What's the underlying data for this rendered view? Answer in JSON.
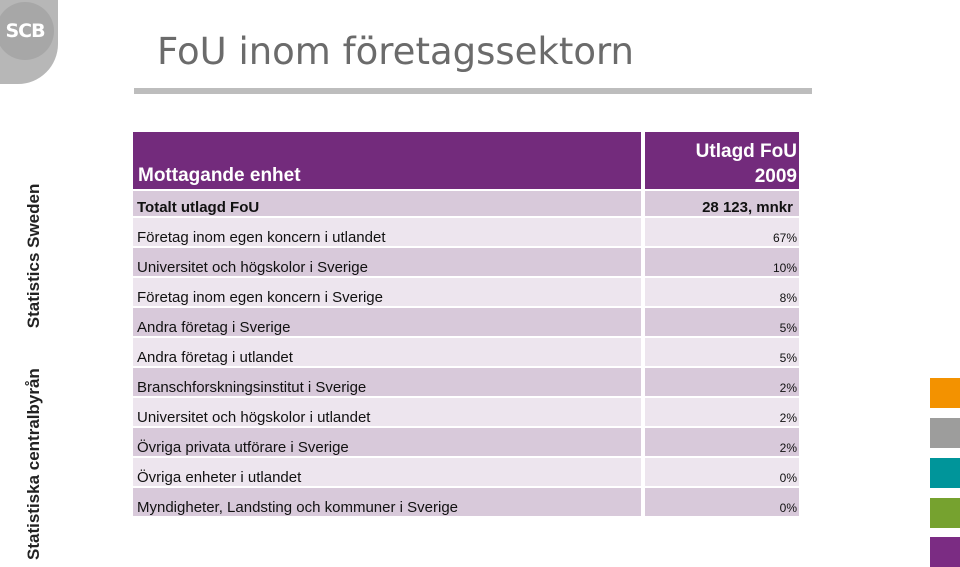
{
  "logo": {
    "text": "SCB"
  },
  "page": {
    "title": "FoU inom företagssektorn"
  },
  "side": {
    "org_sv": "Statistiska centralbyrån",
    "org_en": "Statistics Sweden"
  },
  "table": {
    "header_left": "Mottagande enhet",
    "header_right_line1": "Utlagd FoU",
    "header_right_line2": "2009",
    "total_label": "Totalt utlagd FoU",
    "total_value": "28 123, mnkr",
    "rows": [
      {
        "label": "Företag inom egen koncern i utlandet",
        "value": "67%"
      },
      {
        "label": "Universitet och högskolor i Sverige",
        "value": "10%"
      },
      {
        "label": "Företag inom egen koncern i Sverige",
        "value": "8%"
      },
      {
        "label": "Andra företag i Sverige",
        "value": "5%"
      },
      {
        "label": "Andra företag i utlandet",
        "value": "5%"
      },
      {
        "label": "Branschforskningsinstitut i Sverige",
        "value": "2%"
      },
      {
        "label": "Universitet och högskolor i utlandet",
        "value": "2%"
      },
      {
        "label": "Övriga privata utförare i Sverige",
        "value": "2%"
      },
      {
        "label": "Övriga enheter i utlandet",
        "value": "0%"
      },
      {
        "label": "Myndigheter, Landsting och kommuner i Sverige",
        "value": "0%"
      }
    ]
  },
  "colors": {
    "header": "#732b7c",
    "band_dark": "#d8c9da",
    "band_light": "#ede5ee",
    "squares": [
      "#f39200",
      "#9d9d9c",
      "#00959a",
      "#76a22f",
      "#7b2c83"
    ]
  }
}
